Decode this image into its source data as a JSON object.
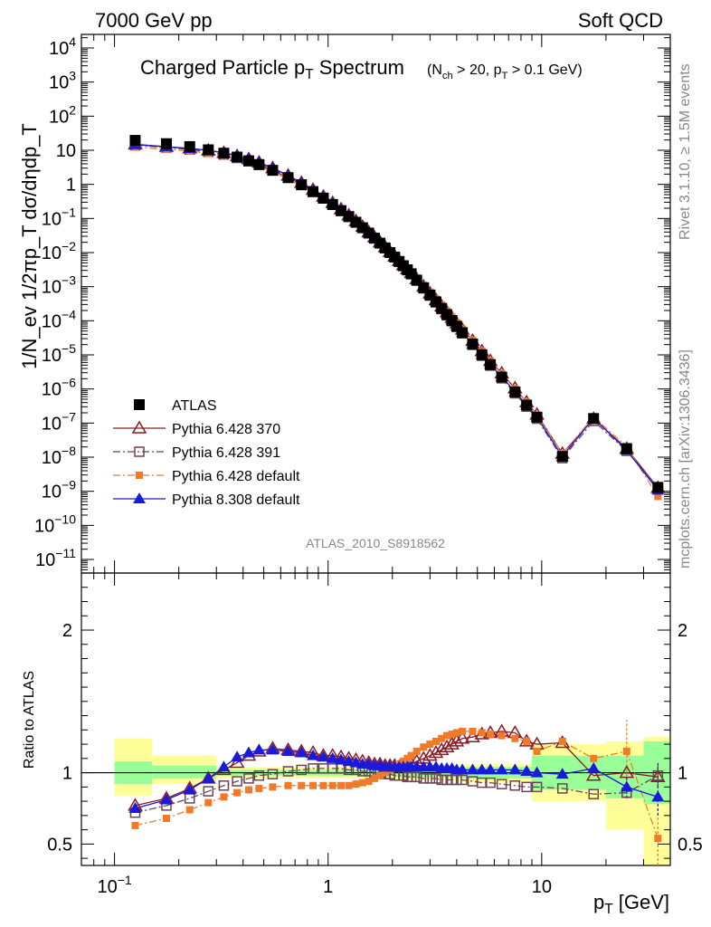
{
  "header": {
    "left": "7000 GeV pp",
    "right": "Soft QCD"
  },
  "side_labels": {
    "rivet": "Rivet 3.1.10, ≥ 1.5M events",
    "mcplots": "mcplots.cern.ch [arXiv:1306.3436]"
  },
  "analysis_label": "ATLAS_2010_S8918562",
  "chart_data": [
    {
      "type": "scatter",
      "title": "Charged Particle p_T Spectrum",
      "subtitle": "(N_ch > 20, p_T > 0.1 GeV)",
      "xlabel": "p_T  [GeV]",
      "ylabel": "1/N_ev 1/2πp_T dσ/dηdp_T",
      "xscale": "log",
      "yscale": "log",
      "xlim": [
        0.07,
        40
      ],
      "ylim": [
        4e-12,
        25000
      ],
      "x_ticks": [
        {
          "v": 0.1,
          "mant": "10",
          "exp": "−1"
        },
        {
          "v": 1,
          "mant": "1",
          "exp": ""
        },
        {
          "v": 10,
          "mant": "10",
          "exp": ""
        }
      ],
      "y_ticks": [
        {
          "v": 10000,
          "mant": "10",
          "exp": "4"
        },
        {
          "v": 1000,
          "mant": "10",
          "exp": "3"
        },
        {
          "v": 100,
          "mant": "10",
          "exp": "2"
        },
        {
          "v": 10,
          "mant": "10",
          "exp": ""
        },
        {
          "v": 1,
          "mant": "1",
          "exp": ""
        },
        {
          "v": 0.1,
          "mant": "10",
          "exp": "−1"
        },
        {
          "v": 0.01,
          "mant": "10",
          "exp": "−2"
        },
        {
          "v": 0.001,
          "mant": "10",
          "exp": "−3"
        },
        {
          "v": 0.0001,
          "mant": "10",
          "exp": "−4"
        },
        {
          "v": 1e-05,
          "mant": "10",
          "exp": "−5"
        },
        {
          "v": 1e-06,
          "mant": "10",
          "exp": "−6"
        },
        {
          "v": 1e-07,
          "mant": "10",
          "exp": "−7"
        },
        {
          "v": 1e-08,
          "mant": "10",
          "exp": "−8"
        },
        {
          "v": 1e-09,
          "mant": "10",
          "exp": "−9"
        },
        {
          "v": 1e-10,
          "mant": "10",
          "exp": "−10"
        },
        {
          "v": 1e-11,
          "mant": "10",
          "exp": "−11"
        }
      ],
      "legend_position": "bottom-left",
      "x": [
        0.125,
        0.175,
        0.225,
        0.275,
        0.325,
        0.375,
        0.425,
        0.475,
        0.55,
        0.65,
        0.75,
        0.85,
        0.95,
        1.05,
        1.15,
        1.25,
        1.35,
        1.45,
        1.55,
        1.65,
        1.75,
        1.85,
        1.95,
        2.05,
        2.15,
        2.25,
        2.35,
        2.45,
        2.6,
        2.8,
        3.0,
        3.2,
        3.4,
        3.6,
        3.8,
        4.0,
        4.25,
        4.75,
        5.25,
        5.75,
        6.5,
        7.5,
        8.5,
        9.5,
        12.5,
        17.5,
        25.0,
        35.0
      ],
      "series": [
        {
          "name": "ATLAS",
          "marker": "square-filled",
          "color": "#000000",
          "values": [
            19.5,
            15.6,
            12.8,
            10.3,
            8.21,
            6.31,
            4.92,
            3.81,
            2.58,
            1.57,
            0.973,
            0.608,
            0.392,
            0.255,
            0.168,
            0.113,
            0.0771,
            0.0533,
            0.0373,
            0.0264,
            0.0189,
            0.0137,
            0.00999,
            0.00739,
            0.00549,
            0.00412,
            0.00313,
            0.00239,
            0.00155,
            0.000928,
            0.000569,
            0.000359,
            0.000231,
            0.000152,
            0.000102,
            6.93e-05,
            4.48e-05,
            2.08e-05,
            1.01e-05,
            5.19e-06,
            2.23e-06,
            8.18e-07,
            3.35e-07,
            1.49e-07,
            1.05e-08,
            1.36e-07,
            1.78e-08,
            1.3e-09
          ]
        },
        {
          "name": "Pythia 6.428 370",
          "marker": "triangle-open",
          "color": "#8b1a24",
          "line": "solid",
          "ratio": [
            0.77,
            0.82,
            0.89,
            0.96,
            1.02,
            1.07,
            1.12,
            1.15,
            1.17,
            1.16,
            1.15,
            1.14,
            1.12,
            1.12,
            1.11,
            1.1,
            1.09,
            1.08,
            1.07,
            1.06,
            1.06,
            1.05,
            1.05,
            1.05,
            1.04,
            1.04,
            1.05,
            1.06,
            1.08,
            1.1,
            1.12,
            1.14,
            1.16,
            1.18,
            1.2,
            1.22,
            1.24,
            1.25,
            1.27,
            1.28,
            1.29,
            1.28,
            1.22,
            1.2,
            1.21,
            0.98,
            1.0,
            0.97
          ]
        },
        {
          "name": "Pythia 6.428 391",
          "marker": "square-open",
          "color": "#6b4455",
          "line": "dash-dot",
          "ratio": [
            0.72,
            0.77,
            0.82,
            0.87,
            0.91,
            0.94,
            0.96,
            0.98,
            0.99,
            1.01,
            1.02,
            1.03,
            1.03,
            1.03,
            1.03,
            1.02,
            1.02,
            1.01,
            1.01,
            1.0,
            1.0,
            0.99,
            0.99,
            0.98,
            0.98,
            0.98,
            0.97,
            0.97,
            0.97,
            0.96,
            0.96,
            0.96,
            0.95,
            0.95,
            0.95,
            0.95,
            0.95,
            0.94,
            0.93,
            0.93,
            0.92,
            0.91,
            0.9,
            0.9,
            0.89,
            0.85,
            0.86,
            0.98
          ]
        },
        {
          "name": "Pythia 6.428 default",
          "marker": "square-small-filled",
          "color": "#f07a2a",
          "line": "dash-dot",
          "ratio": [
            0.63,
            0.68,
            0.74,
            0.79,
            0.83,
            0.86,
            0.88,
            0.89,
            0.9,
            0.91,
            0.91,
            0.91,
            0.91,
            0.91,
            0.91,
            0.91,
            0.92,
            0.93,
            0.94,
            0.96,
            0.98,
            1.0,
            1.02,
            1.04,
            1.06,
            1.08,
            1.1,
            1.12,
            1.15,
            1.18,
            1.2,
            1.22,
            1.24,
            1.26,
            1.27,
            1.28,
            1.29,
            1.29,
            1.28,
            1.27,
            1.26,
            1.24,
            1.22,
            1.15,
            1.22,
            1.1,
            1.15,
            0.54
          ]
        },
        {
          "name": "Pythia 8.308 default",
          "marker": "triangle-filled",
          "color": "#1a1adb",
          "line": "solid",
          "ratio": [
            0.75,
            0.81,
            0.88,
            0.96,
            1.04,
            1.11,
            1.14,
            1.16,
            1.16,
            1.15,
            1.14,
            1.12,
            1.11,
            1.1,
            1.09,
            1.08,
            1.07,
            1.06,
            1.06,
            1.05,
            1.05,
            1.04,
            1.04,
            1.04,
            1.04,
            1.04,
            1.04,
            1.04,
            1.04,
            1.04,
            1.04,
            1.04,
            1.03,
            1.03,
            1.03,
            1.02,
            1.02,
            1.02,
            1.02,
            1.02,
            1.02,
            1.02,
            1.01,
            1.0,
            0.99,
            1.03,
            0.9,
            0.83
          ]
        }
      ]
    },
    {
      "type": "scatter",
      "ylabel": "Ratio to ATLAS",
      "xscale": "log",
      "xlim": [
        0.07,
        40
      ],
      "ylim": [
        0.35,
        2.4
      ],
      "reference_line": 1,
      "y_ticks": [
        {
          "v": 0.5,
          "label": "0.5"
        },
        {
          "v": 1,
          "label": "1"
        },
        {
          "v": 2,
          "label": "2"
        }
      ],
      "bands": [
        {
          "x0": 0.1,
          "x1": 0.15,
          "green": [
            0.92,
            1.08
          ],
          "yellow": [
            0.84,
            1.24
          ]
        },
        {
          "x0": 0.15,
          "x1": 0.3,
          "green": [
            0.96,
            1.05
          ],
          "yellow": [
            0.92,
            1.12
          ]
        },
        {
          "x0": 0.3,
          "x1": 2.0,
          "green": [
            0.98,
            1.02
          ],
          "yellow": [
            0.96,
            1.04
          ]
        },
        {
          "x0": 2.0,
          "x1": 4.0,
          "green": [
            0.97,
            1.03
          ],
          "yellow": [
            0.95,
            1.05
          ]
        },
        {
          "x0": 4.0,
          "x1": 9.0,
          "green": [
            0.96,
            1.04
          ],
          "yellow": [
            0.93,
            1.06
          ]
        },
        {
          "x0": 9.0,
          "x1": 20.0,
          "green": [
            0.88,
            1.12
          ],
          "yellow": [
            0.8,
            1.2
          ]
        },
        {
          "x0": 20.0,
          "x1": 30.0,
          "green": [
            0.82,
            1.12
          ],
          "yellow": [
            0.6,
            1.22
          ]
        },
        {
          "x0": 30.0,
          "x1": 40.0,
          "green": [
            0.78,
            1.22
          ],
          "yellow": [
            0.35,
            1.25
          ]
        }
      ],
      "errors": [
        {
          "series": 3,
          "x": 25.0,
          "lo": 0.85,
          "hi": 1.37
        },
        {
          "series": 3,
          "x": 35.0,
          "lo": 0.35,
          "hi": 0.75
        },
        {
          "series": 4,
          "x": 35.0,
          "lo": 0.7,
          "hi": 1.07
        },
        {
          "series": 4,
          "x": 25.0,
          "lo": 0.82,
          "hi": 0.98
        },
        {
          "series": 2,
          "x": 35.0,
          "lo": 0.9,
          "hi": 1.05
        },
        {
          "series": 1,
          "x": 35.0,
          "lo": 0.9,
          "hi": 1.05
        }
      ]
    }
  ]
}
